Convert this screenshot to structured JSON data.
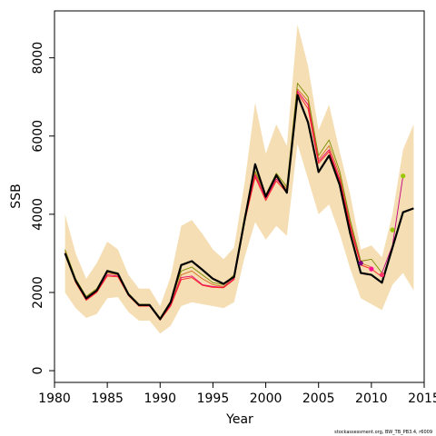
{
  "chart_data": {
    "type": "line",
    "xlabel": "Year",
    "ylabel": "SSB",
    "xlim": [
      1980,
      2015
    ],
    "ylim": [
      -300,
      9200
    ],
    "x_ticks": [
      "1980",
      "1985",
      "1990",
      "1995",
      "2000",
      "2005",
      "2010",
      "2015"
    ],
    "y_ticks": [
      "0",
      "2000",
      "4000",
      "6000",
      "8000"
    ],
    "credit": "stockassessment.org, BW_TB_PB3.4, r6009",
    "colors": {
      "band": "#f5deb3",
      "main": "#000000",
      "retro": [
        "#7a8c00",
        "#d2691e",
        "#e8006a",
        "#ff2020",
        "#c0007f"
      ],
      "dots": [
        "#9ac800",
        "#ff3366",
        "#ff1493",
        "#800080"
      ]
    },
    "band": {
      "x": [
        1981,
        1982,
        1983,
        1984,
        1985,
        1986,
        1987,
        1988,
        1989,
        1990,
        1991,
        1992,
        1993,
        1994,
        1995,
        1996,
        1997,
        1998,
        1999,
        2000,
        2001,
        2002,
        2003,
        2004,
        2005,
        2006,
        2007,
        2008,
        2009,
        2010,
        2011,
        2012,
        2013,
        2014
      ],
      "lower": [
        2000,
        1600,
        1350,
        1450,
        1850,
        1880,
        1500,
        1280,
        1280,
        950,
        1150,
        1650,
        1750,
        1700,
        1650,
        1600,
        1750,
        2900,
        3800,
        3350,
        3700,
        3450,
        5800,
        4900,
        4000,
        4250,
        3500,
        2600,
        1850,
        1700,
        1550,
        2200,
        2500,
        2050
      ],
      "upper": [
        4000,
        3000,
        2350,
        2750,
        3300,
        3100,
        2450,
        2100,
        2100,
        1650,
        2400,
        3700,
        3850,
        3500,
        3100,
        2850,
        3150,
        4800,
        6850,
        5550,
        6300,
        5750,
        8850,
        7800,
        6150,
        6800,
        5600,
        4500,
        3100,
        3200,
        2900,
        4000,
        5650,
        6300
      ]
    },
    "series": [
      {
        "x": [
          1981,
          1982,
          1983,
          1984,
          1985,
          1986,
          1987,
          1988,
          1989,
          1990,
          1991,
          1992,
          1993,
          1994,
          1995,
          1996,
          1997,
          1998,
          1999,
          2000,
          2001,
          2002,
          2003,
          2004,
          2005,
          2006,
          2007,
          2008,
          2009,
          2010,
          2011,
          2012,
          2013,
          2014
        ],
        "values": [
          3000,
          2300,
          1850,
          2050,
          2550,
          2480,
          1950,
          1680,
          1680,
          1320,
          1750,
          2700,
          2800,
          2580,
          2350,
          2220,
          2400,
          3850,
          5280,
          4450,
          5000,
          4550,
          7050,
          6350,
          5080,
          5500,
          4750,
          3500,
          2500,
          2450,
          2250,
          3150,
          4050,
          4150
        ]
      },
      {
        "x": [
          1981,
          1982,
          1983,
          1984,
          1985,
          1986,
          1987,
          1988,
          1989,
          1990,
          1991,
          1992,
          1993,
          1994,
          1995,
          1996,
          1997,
          1998,
          1999,
          2000,
          2001,
          2002,
          2003,
          2004,
          2005,
          2006,
          2007,
          2008,
          2009,
          2010,
          2011
        ],
        "values": [
          3100,
          2350,
          1900,
          2100,
          2550,
          2500,
          1980,
          1700,
          1700,
          1350,
          1780,
          2550,
          2650,
          2450,
          2250,
          2200,
          2450,
          3950,
          5100,
          4500,
          5050,
          4700,
          7350,
          7000,
          5500,
          5900,
          5100,
          3850,
          2800,
          2850,
          2500
        ]
      },
      {
        "x": [
          1981,
          1982,
          1983,
          1984,
          1985,
          1986,
          1987,
          1988,
          1989,
          1990,
          1991,
          1992,
          1993,
          1994,
          1995,
          1996,
          1997,
          1998,
          1999,
          2000,
          2001,
          2002,
          2003,
          2004,
          2005,
          2006,
          2007,
          2008,
          2009,
          2010
        ],
        "values": [
          3050,
          2300,
          1870,
          2050,
          2500,
          2450,
          1950,
          1680,
          1680,
          1320,
          1720,
          2450,
          2550,
          2350,
          2200,
          2150,
          2400,
          3900,
          5050,
          4450,
          4950,
          4650,
          7200,
          6900,
          5400,
          5750,
          5000,
          3750,
          2750,
          2650
        ]
      },
      {
        "x": [
          1981,
          1982,
          1983,
          1984,
          1985,
          1986,
          1987,
          1988,
          1989,
          1990,
          1991,
          1992,
          1993,
          1994,
          1995,
          1996,
          1997,
          1998,
          1999,
          2000,
          2001,
          2002,
          2003,
          2004,
          2005,
          2006,
          2007,
          2008,
          2009
        ],
        "values": [
          3000,
          2280,
          1820,
          2020,
          2450,
          2420,
          1930,
          1660,
          1660,
          1300,
          1680,
          2380,
          2420,
          2200,
          2150,
          2130,
          2350,
          3850,
          5000,
          4400,
          4900,
          4600,
          7150,
          6800,
          5350,
          5650,
          4900,
          3700,
          2750
        ]
      },
      {
        "x": [
          1981,
          1982,
          1983,
          1984,
          1985,
          1986,
          1987,
          1988,
          1989,
          1990,
          1991,
          1992,
          1993,
          1994,
          1995,
          1996,
          1997,
          1998,
          1999,
          2000,
          2001,
          2002,
          2003,
          2004,
          2005,
          2006,
          2007,
          2008,
          2009,
          2010,
          2011
        ],
        "values": [
          3000,
          2250,
          1800,
          2000,
          2420,
          2400,
          1920,
          1650,
          1650,
          1290,
          1650,
          2330,
          2380,
          2180,
          2130,
          2120,
          2330,
          3800,
          4950,
          4350,
          4850,
          4550,
          7100,
          6700,
          5300,
          5600,
          4850,
          3650,
          2700,
          2600,
          2400
        ]
      },
      {
        "x": [
          2011,
          2012,
          2013
        ],
        "values": [
          2500,
          3200,
          4980
        ]
      }
    ],
    "points": [
      {
        "x": 2012,
        "y": 3600
      },
      {
        "x": 2011,
        "y": 2450
      },
      {
        "x": 2010,
        "y": 2600
      },
      {
        "x": 2009,
        "y": 2750
      },
      {
        "x": 2013,
        "y": 4980
      }
    ]
  }
}
